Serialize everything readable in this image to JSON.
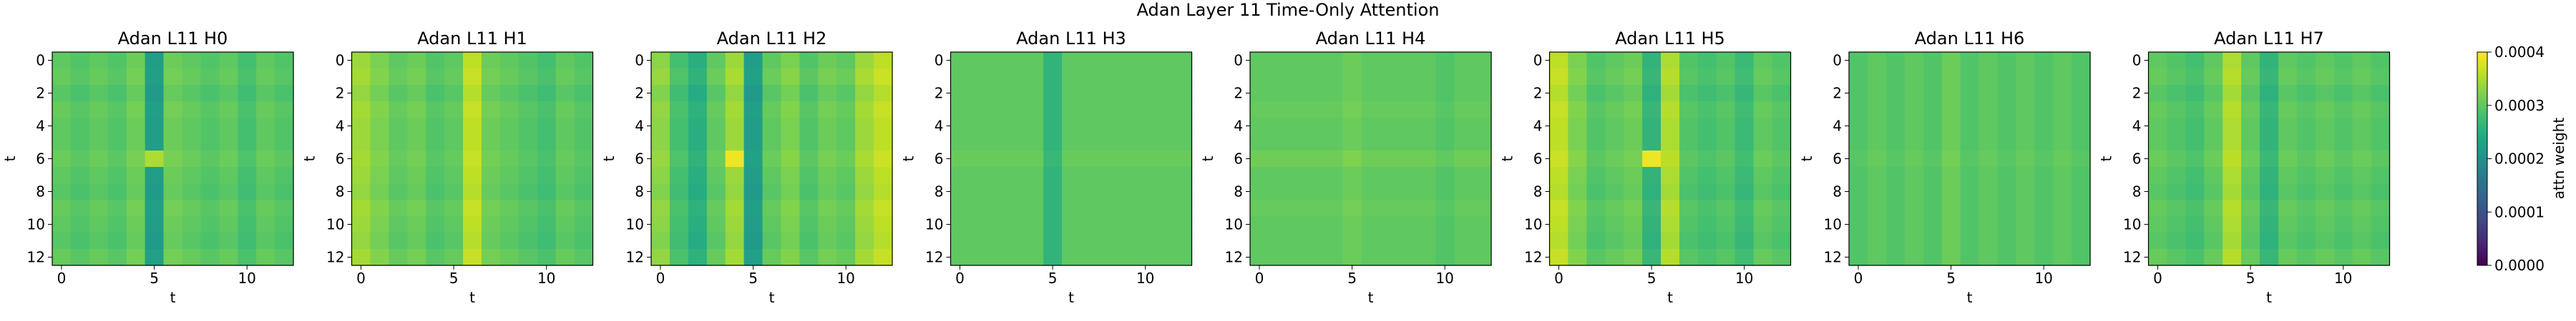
{
  "figure": {
    "suptitle": "Adan Layer 11 Time-Only Attention"
  },
  "colorbar": {
    "label": "attn weight",
    "ticks": [
      "0.0000",
      "0.0001",
      "0.0002",
      "0.0003",
      "0.0004"
    ],
    "tick_values": [
      0.0,
      0.0001,
      0.0002,
      0.0003,
      0.0004
    ],
    "vmin": 0.0,
    "vmax": 0.0004,
    "colormap": "viridis"
  },
  "chart_data": {
    "type": "heatmap",
    "grid_size": 13,
    "xlabel": "t",
    "ylabel": "t",
    "x_ticks": [
      0,
      5,
      10
    ],
    "y_ticks": [
      0,
      2,
      4,
      6,
      8,
      10,
      12
    ],
    "grid": false,
    "panels": [
      {
        "title": "Adan L11 H0",
        "column_values": [
          0.0003,
          0.00029,
          0.0003,
          0.00029,
          0.00031,
          0.00022,
          0.00031,
          0.0003,
          0.00029,
          0.0003,
          0.00028,
          0.0003,
          0.00029
        ],
        "row_offsets": [
          0,
          5e-06,
          -5e-06,
          5e-06,
          0,
          0,
          8e-06,
          0,
          -5e-06,
          5e-06,
          0,
          -5e-06,
          5e-06
        ],
        "hotspots": [
          {
            "row": 6,
            "col": 5,
            "value": 0.00035
          }
        ]
      },
      {
        "title": "Adan L11 H1",
        "column_values": [
          0.00034,
          0.00032,
          0.0003,
          0.00031,
          0.00029,
          0.0003,
          0.00036,
          0.00031,
          0.0003,
          0.00029,
          0.00028,
          0.0003,
          0.00029
        ],
        "row_offsets": [
          0,
          5e-06,
          -5e-06,
          5e-06,
          0,
          0,
          5e-06,
          0,
          -5e-06,
          5e-06,
          0,
          -5e-06,
          5e-06
        ],
        "hotspots": []
      },
      {
        "title": "Adan L11 H2",
        "column_values": [
          0.00033,
          0.00028,
          0.00025,
          0.0003,
          0.00034,
          0.00022,
          0.0003,
          0.00032,
          0.00029,
          0.00031,
          0.0003,
          0.00034,
          0.00036
        ],
        "row_offsets": [
          0,
          8e-06,
          -5e-06,
          5e-06,
          0,
          0,
          8e-06,
          0,
          -5e-06,
          5e-06,
          0,
          -5e-06,
          5e-06
        ],
        "hotspots": [
          {
            "row": 6,
            "col": 4,
            "value": 0.00039
          }
        ]
      },
      {
        "title": "Adan L11 H3",
        "column_values": [
          0.0003,
          0.0003,
          0.0003,
          0.0003,
          0.0003,
          0.00026,
          0.0003,
          0.0003,
          0.0003,
          0.0003,
          0.0003,
          0.0003,
          0.0003
        ],
        "row_offsets": [
          0,
          0,
          0,
          0,
          0,
          0,
          6e-06,
          0,
          0,
          0,
          0,
          0,
          0
        ],
        "hotspots": []
      },
      {
        "title": "Adan L11 H4",
        "column_values": [
          0.0003,
          0.0003,
          0.0003,
          0.0003,
          0.0003,
          0.00031,
          0.0003,
          0.0003,
          0.0003,
          0.0003,
          0.00029,
          0.0003,
          0.0003
        ],
        "row_offsets": [
          0,
          0,
          0,
          5e-06,
          0,
          0,
          1.2e-05,
          0,
          0,
          5e-06,
          0,
          0,
          0
        ],
        "hotspots": []
      },
      {
        "title": "Adan L11 H5",
        "column_values": [
          0.00036,
          0.00032,
          0.00029,
          0.0003,
          0.00031,
          0.00026,
          0.00035,
          0.00029,
          0.00028,
          0.00029,
          0.00027,
          0.0003,
          0.00029
        ],
        "row_offsets": [
          0,
          5e-06,
          -5e-06,
          5e-06,
          0,
          0,
          8e-06,
          0,
          -5e-06,
          5e-06,
          0,
          -5e-06,
          5e-06
        ],
        "hotspots": [
          {
            "row": 6,
            "col": 5,
            "value": 0.00039
          }
        ]
      },
      {
        "title": "Adan L11 H6",
        "column_values": [
          0.00029,
          0.0003,
          0.00029,
          0.0003,
          0.00029,
          0.00031,
          0.00029,
          0.0003,
          0.00029,
          0.0003,
          0.00029,
          0.0003,
          0.00029
        ],
        "row_offsets": [
          0,
          0,
          0,
          0,
          0,
          0,
          5e-06,
          0,
          0,
          0,
          0,
          0,
          0
        ],
        "hotspots": []
      },
      {
        "title": "Adan L11 H7",
        "column_values": [
          0.0003,
          0.00029,
          0.00028,
          0.0003,
          0.00035,
          0.0003,
          0.00026,
          0.0003,
          0.00029,
          0.0003,
          0.00029,
          0.0003,
          0.00029
        ],
        "row_offsets": [
          0,
          5e-06,
          -5e-06,
          5e-06,
          0,
          0,
          8e-06,
          0,
          -5e-06,
          5e-06,
          0,
          -5e-06,
          5e-06
        ],
        "hotspots": []
      }
    ]
  }
}
